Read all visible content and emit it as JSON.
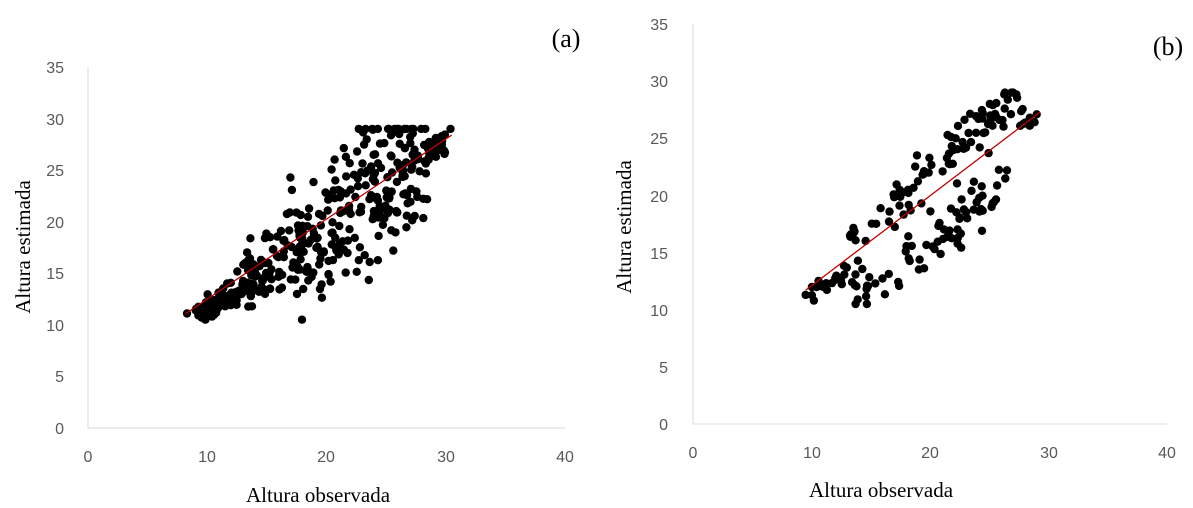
{
  "colors": {
    "marker": "#000000",
    "trendline": "#c00000",
    "axis_line": "#d9d9d9",
    "tick_text": "#595959"
  },
  "chart_data": [
    {
      "type": "scatter",
      "panel_label": "(a)",
      "xlabel": "Altura observada",
      "ylabel": "Altura estimada",
      "xlim": [
        0,
        40
      ],
      "ylim": [
        0,
        35
      ],
      "x_ticks": [
        0,
        10,
        20,
        30,
        40
      ],
      "y_ticks": [
        0,
        5,
        10,
        15,
        20,
        25,
        30,
        35
      ],
      "grid": false,
      "legend": "none",
      "trendline": {
        "x": [
          8.2,
          30.5
        ],
        "y": [
          11.1,
          28.4
        ]
      },
      "points_seed": 7,
      "points_count": 420,
      "points_anchor": [
        [
          8.3,
          11.1
        ],
        [
          30.4,
          29.0
        ],
        [
          26.1,
          28.5
        ],
        [
          10.4,
          10.8
        ],
        [
          25.6,
          17.2
        ],
        [
          18.4,
          15.6
        ]
      ]
    },
    {
      "type": "scatter",
      "panel_label": "(b)",
      "xlabel": "Altura observada",
      "ylabel": "Altura estimada",
      "xlim": [
        0,
        40
      ],
      "ylim": [
        0,
        35
      ],
      "x_ticks": [
        0,
        10,
        20,
        30,
        40
      ],
      "y_ticks": [
        0,
        5,
        10,
        15,
        20,
        25,
        30,
        35
      ],
      "grid": false,
      "legend": "none",
      "trendline": {
        "x": [
          9.5,
          29.3
        ],
        "y": [
          11.7,
          27.3
        ]
      },
      "points_seed": 19,
      "points_count": 190,
      "points_anchor": [
        [
          9.5,
          11.3
        ],
        [
          26.3,
          27.6
        ],
        [
          29.0,
          27.1
        ],
        [
          10.2,
          10.8
        ],
        [
          18.2,
          14.5
        ],
        [
          24.3,
          18.8
        ],
        [
          25.2,
          19.0
        ],
        [
          26.5,
          22.2
        ]
      ]
    }
  ]
}
